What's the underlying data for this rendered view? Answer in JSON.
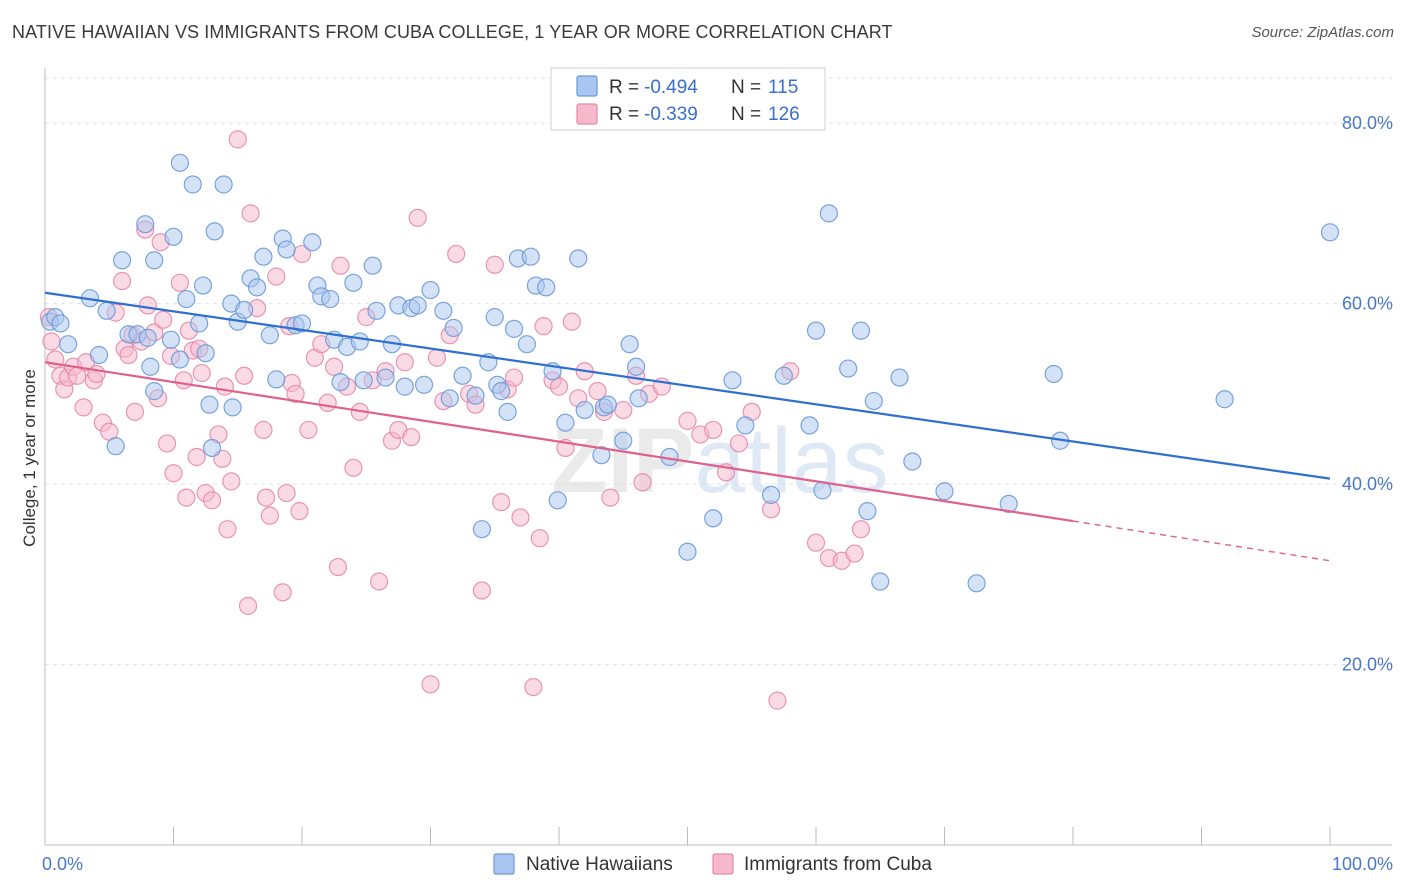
{
  "title": "NATIVE HAWAIIAN VS IMMIGRANTS FROM CUBA COLLEGE, 1 YEAR OR MORE CORRELATION CHART",
  "source": "Source: ZipAtlas.com",
  "colors": {
    "blue_fill": "#a9c6f0",
    "blue_stroke": "#6b9ad8",
    "blue_line": "#2f6fd0",
    "pink_fill": "#f6b8cb",
    "pink_stroke": "#e88aa8",
    "pink_line": "#e0608c",
    "axis_text": "#4a78c8",
    "grid": "#e3e3e3"
  },
  "chart_data": {
    "type": "scatter",
    "title": "NATIVE HAWAIIAN VS IMMIGRANTS FROM CUBA COLLEGE, 1 YEAR OR MORE CORRELATION CHART",
    "xlabel": "",
    "ylabel": "College, 1 year or more",
    "xlim": [
      0,
      100
    ],
    "ylim": [
      0,
      85
    ],
    "x_tick_labels": [
      "0.0%",
      "100.0%"
    ],
    "y_ticks": [
      20,
      40,
      60,
      80
    ],
    "y_tick_labels": [
      "20.0%",
      "40.0%",
      "60.0%",
      "80.0%"
    ],
    "grid": true,
    "legend_position": "top-center",
    "watermark": "ZIPatlas",
    "stats": [
      {
        "r_label": "R =",
        "r_value": "-0.494",
        "n_label": "N =",
        "n_value": "115"
      },
      {
        "r_label": "R =",
        "r_value": "-0.339",
        "n_label": "N =",
        "n_value": "126"
      }
    ],
    "series": [
      {
        "name": "Native Hawaiians",
        "trend": {
          "x0": 0,
          "y0": 61.2,
          "x1": 100,
          "y1": 40.6,
          "dashed_from": null
        },
        "points": [
          [
            0.4,
            58
          ],
          [
            0.8,
            58.5
          ],
          [
            1.2,
            57.8
          ],
          [
            1.8,
            55.5
          ],
          [
            3.5,
            60.6
          ],
          [
            4.2,
            54.3
          ],
          [
            4.8,
            59.2
          ],
          [
            5.5,
            44.2
          ],
          [
            6,
            64.8
          ],
          [
            6.5,
            56.6
          ],
          [
            7.2,
            56.6
          ],
          [
            7.8,
            68.8
          ],
          [
            8,
            56.2
          ],
          [
            8.2,
            53
          ],
          [
            8.5,
            50.3
          ],
          [
            8.5,
            64.8
          ],
          [
            9.8,
            56
          ],
          [
            10,
            67.4
          ],
          [
            10.5,
            53.8
          ],
          [
            10.5,
            75.6
          ],
          [
            11,
            60.5
          ],
          [
            11.5,
            73.2
          ],
          [
            12,
            57.8
          ],
          [
            12.5,
            54.5
          ],
          [
            12.8,
            48.8
          ],
          [
            12.3,
            62
          ],
          [
            13.2,
            68
          ],
          [
            13.9,
            73.2
          ],
          [
            14.5,
            60
          ],
          [
            15,
            58
          ],
          [
            15.5,
            59.3
          ],
          [
            16,
            62.8
          ],
          [
            16.5,
            61.8
          ],
          [
            17,
            65.2
          ],
          [
            17.5,
            56.5
          ],
          [
            18,
            51.6
          ],
          [
            18.5,
            67.2
          ],
          [
            18.8,
            66
          ],
          [
            19.5,
            57.6
          ],
          [
            20,
            57.8
          ],
          [
            20.8,
            66.8
          ],
          [
            21.2,
            62
          ],
          [
            21.5,
            60.8
          ],
          [
            22.2,
            60.5
          ],
          [
            22.5,
            56
          ],
          [
            23,
            51.3
          ],
          [
            23.5,
            55.2
          ],
          [
            24,
            62.3
          ],
          [
            24.5,
            55.8
          ],
          [
            24.8,
            51.5
          ],
          [
            25.5,
            64.2
          ],
          [
            25.8,
            59.2
          ],
          [
            26.5,
            51.8
          ],
          [
            27,
            55.5
          ],
          [
            27.5,
            59.8
          ],
          [
            28,
            50.8
          ],
          [
            28.5,
            59.5
          ],
          [
            29,
            59.8
          ],
          [
            29.5,
            51
          ],
          [
            30,
            61.5
          ],
          [
            31,
            59.2
          ],
          [
            31.5,
            49.5
          ],
          [
            31.8,
            57.3
          ],
          [
            32.5,
            52
          ],
          [
            33.5,
            49.8
          ],
          [
            34.5,
            53.5
          ],
          [
            35,
            58.5
          ],
          [
            35.2,
            51
          ],
          [
            35.5,
            50.3
          ],
          [
            36.5,
            57.2
          ],
          [
            36.8,
            65
          ],
          [
            37.5,
            55.5
          ],
          [
            37.8,
            65.2
          ],
          [
            38.2,
            62
          ],
          [
            39,
            61.8
          ],
          [
            39.5,
            52.5
          ],
          [
            39.9,
            38.2
          ],
          [
            40.5,
            46.8
          ],
          [
            41.5,
            65
          ],
          [
            42,
            48.2
          ],
          [
            43.5,
            48.5
          ],
          [
            43.8,
            48.8
          ],
          [
            43.3,
            43.2
          ],
          [
            45,
            44.8
          ],
          [
            45.5,
            55.5
          ],
          [
            46,
            53
          ],
          [
            46.2,
            49.5
          ],
          [
            48.6,
            43
          ],
          [
            50,
            32.5
          ],
          [
            52,
            36.2
          ],
          [
            53.5,
            51.5
          ],
          [
            54.5,
            46.5
          ],
          [
            56.5,
            38.8
          ],
          [
            57.5,
            52
          ],
          [
            59.5,
            46.5
          ],
          [
            60,
            57
          ],
          [
            60.5,
            39.3
          ],
          [
            61,
            70
          ],
          [
            62.5,
            52.8
          ],
          [
            63.5,
            57
          ],
          [
            64,
            37
          ],
          [
            64.5,
            49.2
          ],
          [
            65,
            29.2
          ],
          [
            66.5,
            51.8
          ],
          [
            67.5,
            42.5
          ],
          [
            70,
            39.2
          ],
          [
            72.5,
            29
          ],
          [
            75,
            37.8
          ],
          [
            78.5,
            52.2
          ],
          [
            79,
            44.8
          ],
          [
            91.8,
            49.4
          ],
          [
            100,
            67.9
          ],
          [
            13,
            44
          ],
          [
            14.6,
            48.5
          ],
          [
            34,
            35
          ],
          [
            36,
            48
          ]
        ]
      },
      {
        "name": "Immigrants from Cuba",
        "trend": {
          "x0": 0,
          "y0": 53.5,
          "x1": 100,
          "y1": 31.5,
          "dashed_from": 80
        },
        "points": [
          [
            0.3,
            58.5
          ],
          [
            0.5,
            55.8
          ],
          [
            0.8,
            53.8
          ],
          [
            1.2,
            52
          ],
          [
            1.5,
            50.5
          ],
          [
            1.8,
            51.8
          ],
          [
            2.2,
            53
          ],
          [
            2.5,
            52
          ],
          [
            3,
            48.5
          ],
          [
            3.2,
            53.5
          ],
          [
            3.8,
            51.5
          ],
          [
            4,
            52.2
          ],
          [
            4.5,
            46.8
          ],
          [
            5,
            45.8
          ],
          [
            5.5,
            59
          ],
          [
            6,
            62.5
          ],
          [
            6.2,
            55
          ],
          [
            6.5,
            54.3
          ],
          [
            6.8,
            56.5
          ],
          [
            7,
            48
          ],
          [
            7.5,
            55.8
          ],
          [
            7.8,
            68.2
          ],
          [
            8,
            59.8
          ],
          [
            8.5,
            56.8
          ],
          [
            8.8,
            49.5
          ],
          [
            9,
            66.8
          ],
          [
            9.2,
            58.2
          ],
          [
            9.5,
            44.5
          ],
          [
            9.8,
            54.2
          ],
          [
            10,
            41.2
          ],
          [
            10.5,
            62.3
          ],
          [
            10.8,
            51.5
          ],
          [
            11,
            38.5
          ],
          [
            11.2,
            57
          ],
          [
            11.5,
            54.8
          ],
          [
            11.8,
            43
          ],
          [
            12,
            55
          ],
          [
            12.2,
            52.3
          ],
          [
            12.5,
            39
          ],
          [
            13,
            38.2
          ],
          [
            13.5,
            45.5
          ],
          [
            13.8,
            42.8
          ],
          [
            14,
            50.8
          ],
          [
            14.2,
            35
          ],
          [
            14.5,
            40.3
          ],
          [
            15,
            78.2
          ],
          [
            15.5,
            52
          ],
          [
            15.8,
            26.5
          ],
          [
            16,
            70
          ],
          [
            16.5,
            59.5
          ],
          [
            17,
            46
          ],
          [
            17.2,
            38.5
          ],
          [
            17.5,
            36.5
          ],
          [
            18,
            63
          ],
          [
            18.5,
            28
          ],
          [
            18.8,
            39
          ],
          [
            19,
            57.5
          ],
          [
            19.2,
            51.2
          ],
          [
            19.5,
            50
          ],
          [
            19.8,
            37
          ],
          [
            20,
            65.5
          ],
          [
            20.5,
            46
          ],
          [
            21,
            54
          ],
          [
            21.5,
            55.5
          ],
          [
            22,
            49
          ],
          [
            22.5,
            53
          ],
          [
            22.8,
            30.8
          ],
          [
            23,
            64.2
          ],
          [
            23.5,
            50.8
          ],
          [
            24,
            41.8
          ],
          [
            24.5,
            48
          ],
          [
            25,
            58.5
          ],
          [
            25.5,
            51.5
          ],
          [
            26,
            29.2
          ],
          [
            26.5,
            52.5
          ],
          [
            27,
            44.8
          ],
          [
            27.5,
            46
          ],
          [
            28,
            53.5
          ],
          [
            28.5,
            45.2
          ],
          [
            29,
            69.5
          ],
          [
            30,
            17.8
          ],
          [
            30.5,
            54
          ],
          [
            31,
            49.2
          ],
          [
            31.5,
            56.5
          ],
          [
            32,
            65.5
          ],
          [
            33,
            50
          ],
          [
            33.5,
            48.8
          ],
          [
            34,
            28.2
          ],
          [
            35,
            64.3
          ],
          [
            35.5,
            38
          ],
          [
            36,
            50.5
          ],
          [
            36.5,
            51.8
          ],
          [
            37,
            36.3
          ],
          [
            38,
            17.5
          ],
          [
            38.5,
            34
          ],
          [
            38.8,
            57.5
          ],
          [
            39.5,
            51.5
          ],
          [
            40,
            50.8
          ],
          [
            40.5,
            44
          ],
          [
            41,
            58
          ],
          [
            41.5,
            49.5
          ],
          [
            42,
            52.5
          ],
          [
            43,
            50.3
          ],
          [
            43.5,
            48
          ],
          [
            44,
            38.5
          ],
          [
            45,
            48.2
          ],
          [
            46,
            52
          ],
          [
            46.5,
            40.2
          ],
          [
            47,
            50
          ],
          [
            48,
            50.8
          ],
          [
            50,
            47
          ],
          [
            51,
            45.5
          ],
          [
            52,
            46
          ],
          [
            53,
            41.3
          ],
          [
            54,
            44.5
          ],
          [
            55,
            48
          ],
          [
            56.5,
            37.2
          ],
          [
            57,
            16
          ],
          [
            58,
            52.5
          ],
          [
            60,
            33.5
          ],
          [
            61,
            31.8
          ],
          [
            62,
            31.5
          ],
          [
            63,
            32.3
          ],
          [
            63.5,
            35
          ]
        ]
      }
    ]
  },
  "legend": {
    "items": [
      {
        "label": "Native Hawaiians"
      },
      {
        "label": "Immigrants from Cuba"
      }
    ]
  }
}
